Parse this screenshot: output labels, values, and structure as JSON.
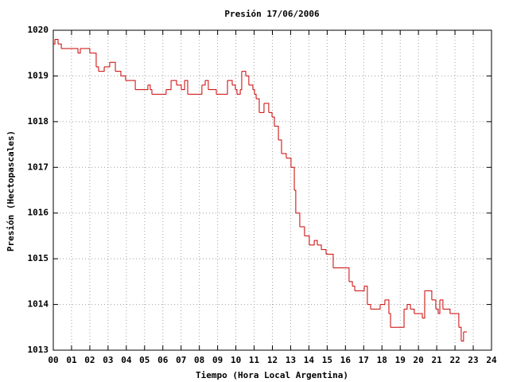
{
  "chart_data": {
    "type": "line",
    "step": true,
    "title": "Presión 17/06/2006",
    "x_label": "Tiempo (Hora Local Argentina)",
    "y_label": "Presión (Hectopascales)",
    "color": "#cc0000",
    "grid": true,
    "xlim": [
      0,
      24
    ],
    "xticks": [
      {
        "value": 0,
        "label": "00"
      },
      {
        "value": 1,
        "label": "01"
      },
      {
        "value": 2,
        "label": "02"
      },
      {
        "value": 3,
        "label": "03"
      },
      {
        "value": 4,
        "label": "04"
      },
      {
        "value": 5,
        "label": "05"
      },
      {
        "value": 6,
        "label": "06"
      },
      {
        "value": 7,
        "label": "07"
      },
      {
        "value": 8,
        "label": "08"
      },
      {
        "value": 9,
        "label": "09"
      },
      10,
      11,
      12,
      13,
      14,
      15,
      16,
      17,
      18,
      19,
      20,
      21,
      22,
      23,
      24
    ],
    "ylim": [
      1013,
      1020
    ],
    "yticks": [
      1013,
      1014,
      1015,
      1016,
      1017,
      1018,
      1019,
      1020
    ],
    "x": [
      0,
      0.09,
      0.26,
      0.44,
      1.35,
      1.48,
      2.0,
      2.35,
      2.48,
      2.79,
      3.09,
      3.4,
      3.7,
      3.96,
      4.49,
      5.18,
      5.31,
      5.4,
      6.18,
      6.45,
      6.75,
      7.01,
      7.19,
      7.36,
      8.14,
      8.32,
      8.49,
      8.93,
      9.54,
      9.8,
      9.97,
      10.06,
      10.24,
      10.32,
      10.54,
      10.71,
      10.93,
      11.02,
      11.11,
      11.28,
      11.54,
      11.8,
      11.98,
      12.11,
      12.33,
      12.5,
      12.76,
      13.02,
      13.2,
      13.28,
      13.5,
      13.76,
      14.02,
      14.29,
      14.46,
      14.68,
      14.94,
      15.33,
      16.2,
      16.38,
      16.51,
      17.03,
      17.2,
      17.38,
      17.9,
      18.16,
      18.38,
      18.47,
      19.21,
      19.38,
      19.56,
      19.77,
      20.21,
      20.34,
      20.73,
      20.95,
      21.08,
      21.17,
      21.34,
      21.73,
      22.21,
      22.34,
      22.47,
      22.65
    ],
    "values": [
      1019.7,
      1019.8,
      1019.7,
      1019.6,
      1019.5,
      1019.6,
      1019.5,
      1019.2,
      1019.1,
      1019.2,
      1019.3,
      1019.1,
      1019.0,
      1018.9,
      1018.7,
      1018.8,
      1018.7,
      1018.6,
      1018.7,
      1018.9,
      1018.8,
      1018.7,
      1018.9,
      1018.6,
      1018.8,
      1018.9,
      1018.7,
      1018.6,
      1018.9,
      1018.8,
      1018.7,
      1018.6,
      1018.7,
      1019.1,
      1019.0,
      1018.8,
      1018.7,
      1018.6,
      1018.5,
      1018.2,
      1018.4,
      1018.2,
      1018.1,
      1017.9,
      1017.6,
      1017.3,
      1017.2,
      1017.0,
      1016.5,
      1016.0,
      1015.7,
      1015.5,
      1015.3,
      1015.4,
      1015.3,
      1015.2,
      1015.1,
      1014.8,
      1014.5,
      1014.4,
      1014.3,
      1014.4,
      1014.0,
      1013.9,
      1014.0,
      1014.1,
      1013.8,
      1013.5,
      1013.9,
      1014.0,
      1013.9,
      1013.8,
      1013.7,
      1014.3,
      1014.1,
      1013.9,
      1013.8,
      1014.1,
      1013.9,
      1013.8,
      1013.5,
      1013.2,
      1013.4,
      1013.4
    ]
  }
}
